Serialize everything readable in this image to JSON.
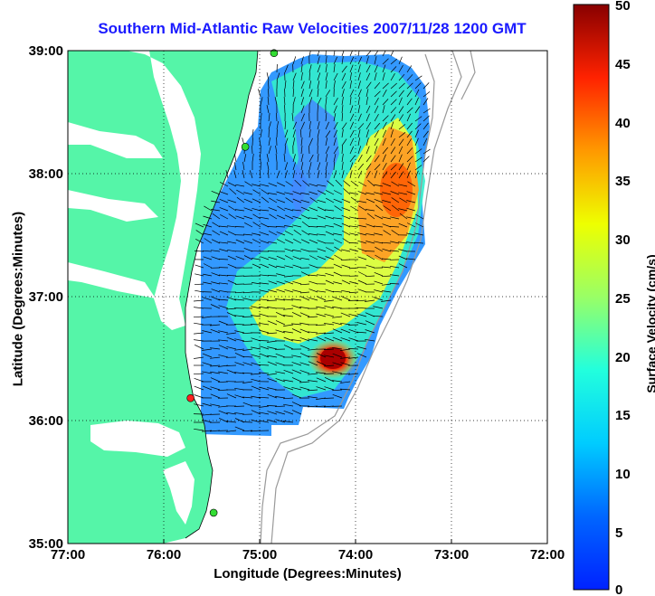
{
  "title": "Southern Mid-Atlantic Raw Velocities 2007/11/28 1200 GMT",
  "x_axis": {
    "label": "Longitude (Degrees:Minutes)",
    "ticks": [
      "77:00",
      "76:00",
      "75:00",
      "74:00",
      "73:00",
      "72:00"
    ]
  },
  "y_axis": {
    "label": "Latitude (Degrees:Minutes)",
    "ticks": [
      "39:00",
      "38:00",
      "37:00",
      "36:00",
      "35:00"
    ]
  },
  "colorbar": {
    "label": "Surface Velocity (cm/s)",
    "ticks": [
      "50",
      "45",
      "40",
      "35",
      "30",
      "25",
      "20",
      "15",
      "10",
      "5",
      "0"
    ],
    "min": 0,
    "max": 50,
    "colormap": "jet"
  },
  "colors": {
    "land": "#55f5a8",
    "title": "#1a1aff",
    "station_green": "#33dd33",
    "station_red": "#ff2020"
  },
  "stations": [
    {
      "lon": -74.85,
      "lat": 38.98,
      "status": "green"
    },
    {
      "lon": -75.15,
      "lat": 38.22,
      "status": "green"
    },
    {
      "lon": -75.72,
      "lat": 36.18,
      "status": "red"
    },
    {
      "lon": -75.48,
      "lat": 35.25,
      "status": "green"
    }
  ],
  "chart_data": {
    "type": "heatmap",
    "subtype": "surface current vector field",
    "x_range": [
      -77,
      -72
    ],
    "y_range": [
      35,
      39
    ],
    "value_range": [
      0,
      50
    ],
    "units": "cm/s",
    "hotspots": [
      {
        "lon": -73.5,
        "lat": 37.95,
        "speed": 38
      },
      {
        "lon": -73.85,
        "lat": 37.15,
        "speed": 32
      },
      {
        "lon": -74.22,
        "lat": 36.52,
        "speed": 48
      }
    ]
  }
}
